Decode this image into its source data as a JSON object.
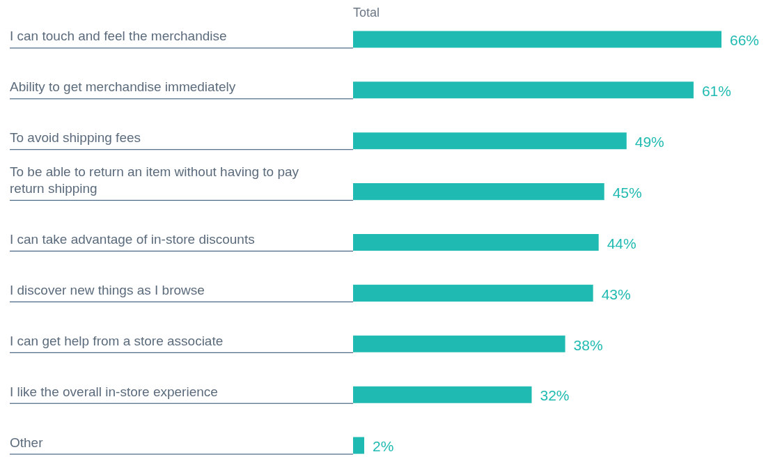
{
  "chart_data": {
    "type": "bar",
    "orientation": "horizontal",
    "title": "Total",
    "categories": [
      "I can touch and feel the merchandise",
      "Ability to get merchandise immediately",
      "To avoid shipping fees",
      "To be able to return an item without having to pay return shipping",
      "I can take advantage of in-store discounts",
      "I discover new things as I browse",
      "I can get help from a store associate",
      "I like the overall in-store experience",
      "Other"
    ],
    "values": [
      66,
      61,
      49,
      45,
      44,
      43,
      38,
      32,
      2
    ],
    "value_labels": [
      "66%",
      "61%",
      "49%",
      "45%",
      "44%",
      "43%",
      "38%",
      "32%",
      "2%"
    ],
    "color": "#1fbab1",
    "legend": false
  }
}
